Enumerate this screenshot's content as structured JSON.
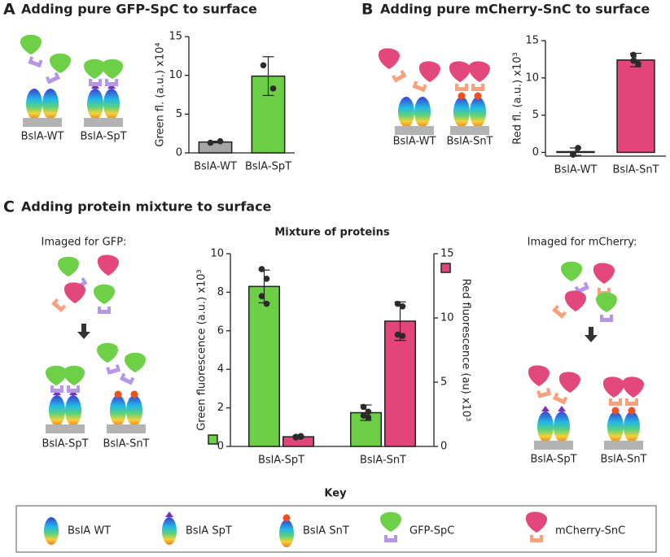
{
  "panels": {
    "A": {
      "letter": "A",
      "title": "Adding pure GFP-SpC to surface",
      "labels": [
        "BslA-WT",
        "BslA-SpT"
      ]
    },
    "B": {
      "letter": "B",
      "title": "Adding pure mCherry-SnC to surface",
      "labels": [
        "BslA-WT",
        "BslA-SnT"
      ]
    },
    "C": {
      "letter": "C",
      "title": "Adding protein mixture to surface",
      "left_caption": "Imaged for GFP:",
      "left_labels": [
        "BslA-SpT",
        "BslA-SnT"
      ],
      "right_caption": "Imaged for mCherry:",
      "right_labels": [
        "BslA-SpT",
        "BslA-SnT"
      ]
    }
  },
  "key": {
    "title": "Key",
    "items": [
      "BslA WT",
      "BslA SpT",
      "BslA SnT",
      "GFP-SpC",
      "mCherry-SnC"
    ]
  },
  "chart_data": [
    {
      "type": "bar",
      "ylabel": "Green fl. (a.u.) x10⁴",
      "categories": [
        "BslA-WT",
        "BslA-SpT"
      ],
      "series": [
        {
          "colors": [
            "#a6a6a6",
            "#6ccf45"
          ],
          "values": [
            1.4,
            9.9
          ],
          "errors": [
            0.1,
            2.5
          ],
          "points": [
            [
              1.3,
              1.5
            ],
            [
              11.3,
              8.3
            ]
          ]
        }
      ],
      "ylim": [
        0,
        15
      ],
      "yticks": [
        0,
        5,
        10,
        15
      ]
    },
    {
      "type": "bar",
      "ylabel": "Red fl. (a.u.) x10³",
      "categories": [
        "BslA-WT",
        "BslA-SnT"
      ],
      "series": [
        {
          "colors": [
            "#a6a6a6",
            "#e2457a"
          ],
          "values": [
            0.1,
            12.4
          ],
          "errors": [
            0.5,
            0.9
          ],
          "points": [
            [
              -0.3,
              0.6,
              -0.2
            ],
            [
              13.1,
              11.9,
              12.3
            ]
          ]
        }
      ],
      "ylim": [
        -0.5,
        15
      ],
      "yticks": [
        0,
        5,
        10,
        15
      ]
    },
    {
      "type": "bar",
      "title": "Mixture of proteins",
      "ylabel": "Green fluorescence (a.u.) x10³",
      "y2label": "Red fluorescence (au) x10³",
      "categories": [
        "BslA-SpT",
        "BslA-SnT"
      ],
      "series": [
        {
          "color": "#6ccf45",
          "values": [
            8.3,
            1.75
          ],
          "errors": [
            0.85,
            0.4
          ],
          "points": [
            [
              9.2,
              8.7,
              7.8,
              7.4
            ],
            [
              2.05,
              1.8,
              1.6,
              1.5
            ]
          ]
        },
        {
          "color": "#e2457a",
          "axis": "y2",
          "values": [
            0.75,
            9.75
          ],
          "errors": [
            0.1,
            1.5
          ],
          "points": [
            [
              0.7,
              0.75,
              0.75,
              0.8
            ],
            [
              11.1,
              10.9,
              8.7,
              8.6
            ]
          ]
        }
      ],
      "ylim": [
        0,
        10
      ],
      "yticks": [
        0,
        2,
        4,
        6,
        8,
        10
      ],
      "y2lim": [
        0,
        15
      ],
      "y2ticks": [
        0,
        5,
        10,
        15
      ]
    }
  ]
}
